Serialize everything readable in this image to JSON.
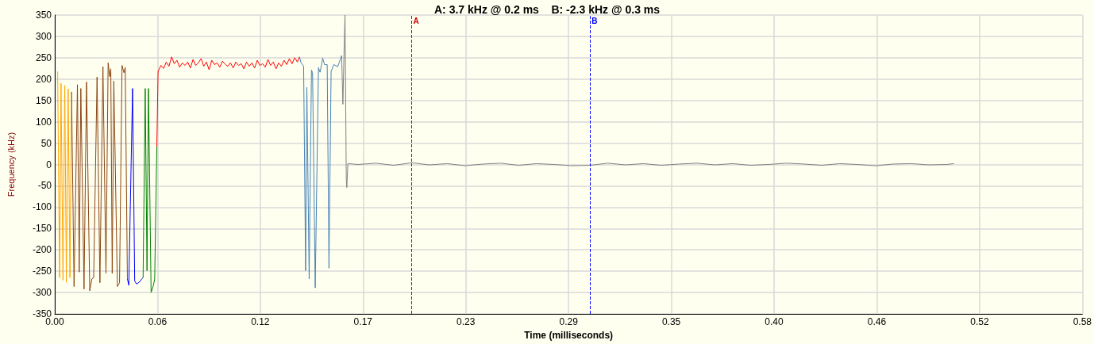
{
  "chart_data": {
    "type": "line",
    "title": "A: 3.7 kHz @ 0.2 ms    B: -2.3 kHz @ 0.3 ms",
    "xlabel": "Time (milliseconds)",
    "ylabel": "Frequency (kHz)",
    "xlim": [
      0,
      0.576
    ],
    "xticks": [
      {
        "value": 0,
        "label": "0.00"
      },
      {
        "value": 0.0576,
        "label": "0.06"
      },
      {
        "value": 0.1152,
        "label": "0.12"
      },
      {
        "value": 0.1728,
        "label": "0.17"
      },
      {
        "value": 0.2304,
        "label": "0.23"
      },
      {
        "value": 0.288,
        "label": "0.29"
      },
      {
        "value": 0.3456,
        "label": "0.35"
      },
      {
        "value": 0.4032,
        "label": "0.40"
      },
      {
        "value": 0.4608,
        "label": "0.46"
      },
      {
        "value": 0.5184,
        "label": "0.52"
      },
      {
        "value": 0.576,
        "label": "0.58"
      }
    ],
    "ylim": [
      -350,
      350
    ],
    "yticks": [
      -350,
      -300,
      -250,
      -200,
      -150,
      -100,
      -50,
      0,
      50,
      100,
      150,
      200,
      250,
      300,
      350
    ],
    "grid": true,
    "series": [
      {
        "color": "#ffa500",
        "x": [
          0.0016,
          0.0027,
          0.0035,
          0.0046,
          0.0056,
          0.0065,
          0.0075,
          0.0085,
          0.0094
        ],
        "values": [
          218,
          -265,
          190,
          -271,
          185,
          -276,
          177,
          -265,
          170
        ]
      },
      {
        "color": "#8b4513",
        "x": [
          0.0094,
          0.0108,
          0.0127,
          0.0137,
          0.0146,
          0.0164,
          0.0178,
          0.0196,
          0.0208,
          0.0218,
          0.0237,
          0.0253,
          0.027,
          0.0287,
          0.0299,
          0.0308,
          0.0314,
          0.0322,
          0.0331,
          0.0351,
          0.0363,
          0.0377,
          0.0388,
          0.0395,
          0.0407
        ],
        "values": [
          170,
          -286,
          187,
          -252,
          178,
          -292,
          193,
          -296,
          -268,
          -265,
          205,
          -277,
          229,
          -255,
          238,
          206,
          224,
          -255,
          195,
          -286,
          -277,
          232,
          215,
          227,
          -268
        ]
      },
      {
        "color": "#0000ff",
        "x": [
          0.0407,
          0.0415,
          0.0436,
          0.0448,
          0.0458,
          0.0473,
          0.0488,
          0.0495
        ],
        "values": [
          -268,
          -283,
          178,
          -273,
          -280,
          -276,
          -268,
          -265
        ]
      },
      {
        "color": "#008000",
        "x": [
          0.0495,
          0.0507,
          0.0517,
          0.0525,
          0.054,
          0.0553,
          0.056,
          0.0572
        ],
        "values": [
          -265,
          178,
          -249,
          178,
          -300,
          -283,
          -268,
          42
        ]
      },
      {
        "color": "#ff0000",
        "x": [
          0.0572,
          0.0579,
          0.0595,
          0.061,
          0.0625,
          0.064,
          0.0655,
          0.067,
          0.0685,
          0.07,
          0.0715,
          0.073,
          0.0745,
          0.076,
          0.0775,
          0.079,
          0.0805,
          0.082,
          0.0835,
          0.085,
          0.0865,
          0.088,
          0.0895,
          0.091,
          0.0925,
          0.094,
          0.0955,
          0.097,
          0.0985,
          0.1,
          0.1015,
          0.103,
          0.1045,
          0.106,
          0.1075,
          0.109,
          0.1105,
          0.112,
          0.1135,
          0.115,
          0.1165,
          0.118,
          0.1195,
          0.121,
          0.1225,
          0.124,
          0.1255,
          0.127,
          0.1285,
          0.13,
          0.1315,
          0.133,
          0.1345,
          0.136,
          0.1372
        ],
        "values": [
          42,
          218,
          232,
          225,
          240,
          230,
          252,
          236,
          244,
          228,
          238,
          232,
          240,
          226,
          246,
          232,
          238,
          248,
          230,
          240,
          222,
          244,
          234,
          238,
          228,
          242,
          235,
          230,
          238,
          226,
          240,
          232,
          236,
          224,
          240,
          230,
          238,
          226,
          244,
          232,
          236,
          228,
          246,
          232,
          240,
          224,
          238,
          230,
          244,
          234,
          248,
          236,
          250,
          240,
          252
        ]
      },
      {
        "color": "#4682b4",
        "x": [
          0.1372,
          0.1379,
          0.1395,
          0.1406,
          0.1413,
          0.1426,
          0.1439,
          0.1445,
          0.146,
          0.1478,
          0.1487,
          0.1502,
          0.1512,
          0.1527,
          0.1537,
          0.1549,
          0.1564,
          0.1586,
          0.1608
        ],
        "values": [
          252,
          240,
          230,
          -249,
          181,
          -268,
          221,
          215,
          -289,
          227,
          216,
          249,
          234,
          234,
          -243,
          218,
          234,
          229,
          255
        ]
      },
      {
        "color": "#808080",
        "x": [
          0.1608,
          0.1615,
          0.1623,
          0.1627,
          0.1634,
          0.1637,
          0.1643,
          0.17,
          0.18,
          0.19,
          0.2,
          0.21,
          0.22,
          0.23,
          0.24,
          0.25,
          0.26,
          0.27,
          0.28,
          0.29,
          0.3,
          0.31,
          0.32,
          0.33,
          0.34,
          0.35,
          0.36,
          0.37,
          0.38,
          0.39,
          0.4,
          0.41,
          0.42,
          0.43,
          0.44,
          0.45,
          0.46,
          0.47,
          0.48,
          0.49,
          0.5,
          0.504
        ],
        "values": [
          255,
          141,
          292,
          350,
          -36,
          -54,
          2,
          0,
          3,
          -2,
          4,
          -1,
          2,
          -3,
          1,
          3,
          -2,
          2,
          0,
          -3,
          -2,
          3,
          -1,
          2,
          -2,
          1,
          3,
          -1,
          2,
          -2,
          0,
          3,
          1,
          -2,
          2,
          0,
          -3,
          1,
          2,
          -1,
          0,
          2
        ]
      }
    ],
    "ref_lines": [
      {
        "axis": "x",
        "value": 0.2,
        "label": "A",
        "color": "#cc0000",
        "line_style": "dashed"
      },
      {
        "axis": "x",
        "value": 0.3,
        "label": "B",
        "color": "#0000ff",
        "line_style": "dashed"
      }
    ]
  }
}
